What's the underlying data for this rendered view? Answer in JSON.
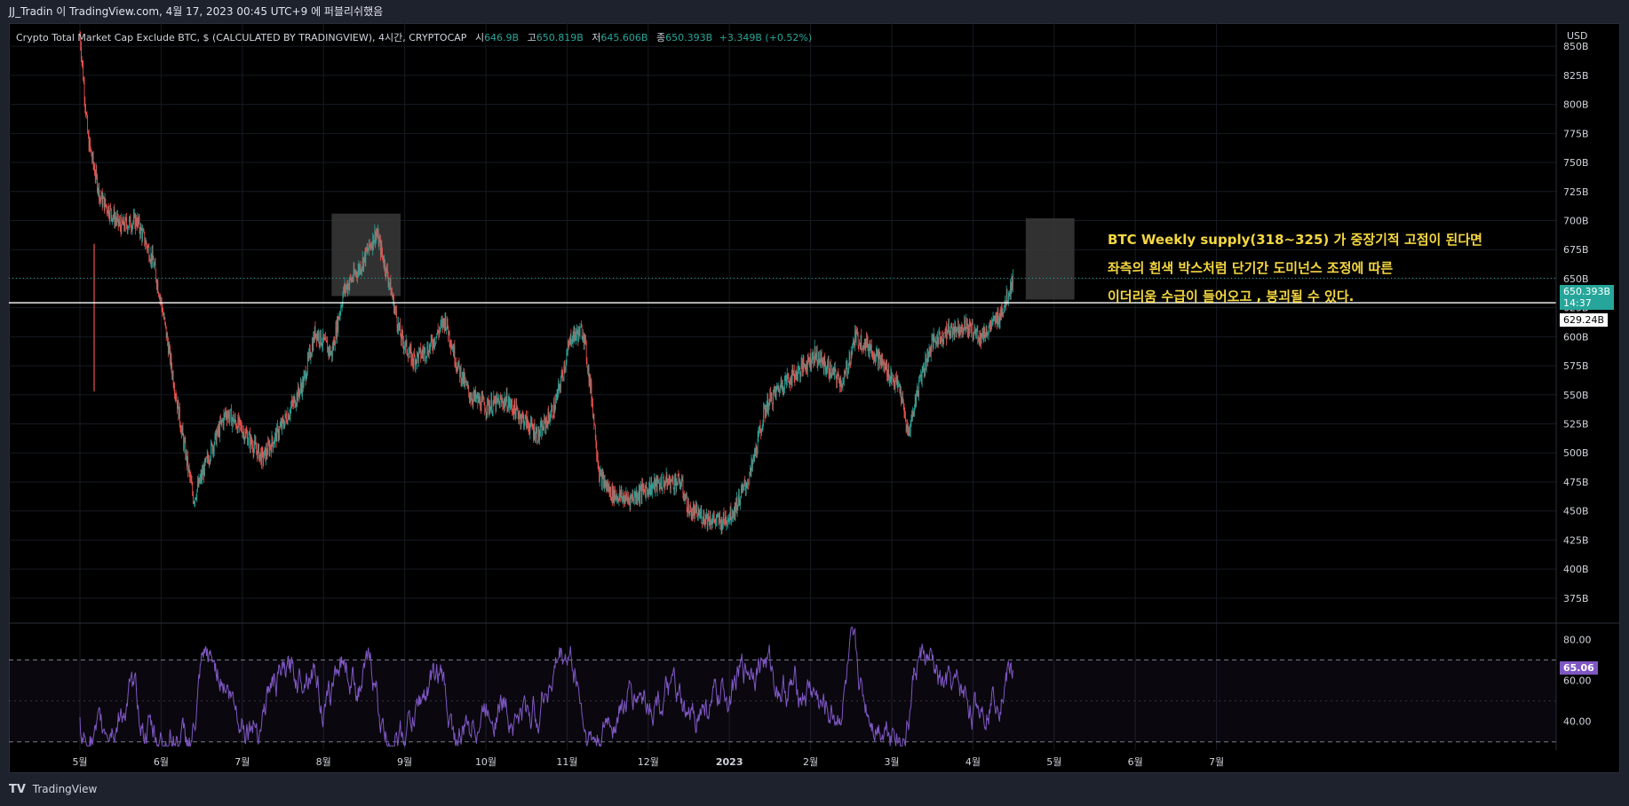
{
  "attribution": "JJ_Tradin 이 TradingView.com, 4월 17, 2023 00:45 UTC+9 에 퍼블리쉬했음",
  "header": {
    "symbol": "Crypto Total Market Cap Exclude BTC, $ (CALCULATED BY TRADINGVIEW), 4시간, CRYPTOCAP",
    "o_label": "시",
    "o_value": "646.9B",
    "h_label": "고",
    "h_value": "650.819B",
    "l_label": "저",
    "l_value": "645.606B",
    "c_label": "종",
    "c_value": "650.393B",
    "change": "+3.349B (+0.52%)"
  },
  "currency": "USD",
  "annotation": {
    "line1": "BTC Weekly supply(318~325)  가 중장기적 고점이 된다면",
    "line2": "좌측의 흰색 박스처럼 단기간 도미넌스 조정에 따른",
    "line3": "이더리움 수급이 들어오고 , 붕괴될 수 있다."
  },
  "price_tags": {
    "last_price": "650.393B",
    "countdown": "14:37",
    "level": "629.24B",
    "rsi_value": "65.06"
  },
  "footer": {
    "brand": "TradingView",
    "logo": "TV"
  },
  "colors": {
    "up": "#26a69a",
    "down": "#ef5350",
    "rsi": "#7e57c2",
    "annotation": "#f5d742",
    "box": "#3a3a3a",
    "level_line": "#ffffff"
  },
  "chart_data": [
    {
      "type": "candlestick",
      "title": "Crypto Total Market Cap Exclude BTC",
      "timeframe": "4시간",
      "y_unit": "USD",
      "y_ticks": [
        "850B",
        "825B",
        "800B",
        "775B",
        "750B",
        "725B",
        "700B",
        "675B",
        "650B",
        "625B",
        "600B",
        "575B",
        "550B",
        "525B",
        "500B",
        "475B",
        "450B",
        "425B",
        "400B",
        "375B"
      ],
      "x_ticks": [
        "5월",
        "6월",
        "7월",
        "8월",
        "9월",
        "10월",
        "11월",
        "12월",
        "2023",
        "2월",
        "3월",
        "4월",
        "5월",
        "6월",
        "7월"
      ],
      "close_path": [
        [
          0,
          860
        ],
        [
          0.2,
          770
        ],
        [
          0.5,
          720
        ],
        [
          1,
          695
        ],
        [
          1.4,
          700
        ],
        [
          1.8,
          665
        ],
        [
          2.0,
          630
        ],
        [
          2.5,
          520
        ],
        [
          2.8,
          460
        ],
        [
          3.2,
          500
        ],
        [
          3.6,
          535
        ],
        [
          4.0,
          520
        ],
        [
          4.5,
          495
        ],
        [
          5.0,
          525
        ],
        [
          5.5,
          560
        ],
        [
          5.8,
          605
        ],
        [
          6.2,
          585
        ],
        [
          6.5,
          640
        ],
        [
          6.9,
          660
        ],
        [
          7.3,
          690
        ],
        [
          7.6,
          650
        ],
        [
          7.9,
          600
        ],
        [
          8.2,
          580
        ],
        [
          8.6,
          590
        ],
        [
          9.0,
          615
        ],
        [
          9.3,
          575
        ],
        [
          9.6,
          550
        ],
        [
          10.0,
          540
        ],
        [
          10.5,
          545
        ],
        [
          10.9,
          530
        ],
        [
          11.3,
          515
        ],
        [
          11.7,
          540
        ],
        [
          12.1,
          600
        ],
        [
          12.4,
          605
        ],
        [
          12.6,
          550
        ],
        [
          12.8,
          480
        ],
        [
          13.1,
          465
        ],
        [
          13.5,
          460
        ],
        [
          14.0,
          470
        ],
        [
          14.4,
          475
        ],
        [
          14.8,
          475
        ],
        [
          15.0,
          450
        ],
        [
          15.4,
          445
        ],
        [
          15.8,
          440
        ],
        [
          16.1,
          450
        ],
        [
          16.5,
          480
        ],
        [
          16.9,
          540
        ],
        [
          17.3,
          560
        ],
        [
          17.7,
          570
        ],
        [
          18.1,
          585
        ],
        [
          18.5,
          570
        ],
        [
          18.8,
          560
        ],
        [
          19.1,
          600
        ],
        [
          19.5,
          590
        ],
        [
          19.9,
          570
        ],
        [
          20.2,
          555
        ],
        [
          20.4,
          515
        ],
        [
          20.7,
          565
        ],
        [
          21.0,
          595
        ],
        [
          21.4,
          605
        ],
        [
          21.8,
          610
        ],
        [
          22.2,
          600
        ],
        [
          22.6,
          615
        ],
        [
          22.8,
          630
        ],
        [
          23.0,
          650.4
        ]
      ],
      "boxes": [
        {
          "x": [
            6.2,
            7.9
          ],
          "y": [
            635,
            706
          ]
        },
        {
          "x": [
            23.3,
            24.5
          ],
          "y": [
            632,
            702
          ]
        }
      ],
      "horizontal_levels": [
        629.24,
        650.393
      ],
      "ylim": [
        355,
        870
      ]
    },
    {
      "type": "line",
      "title": "RSI",
      "y_ticks": [
        "80.00",
        "60.00",
        "40.00"
      ],
      "bands": [
        30,
        70
      ],
      "last": 65.06,
      "ylim": [
        26,
        88
      ]
    }
  ]
}
